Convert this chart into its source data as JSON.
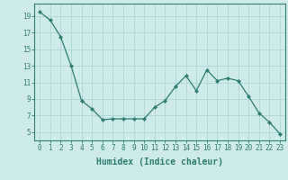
{
  "x": [
    0,
    1,
    2,
    3,
    4,
    5,
    6,
    7,
    8,
    9,
    10,
    11,
    12,
    13,
    14,
    15,
    16,
    17,
    18,
    19,
    20,
    21,
    22,
    23
  ],
  "y": [
    19.5,
    18.5,
    16.5,
    13.0,
    8.8,
    7.8,
    6.5,
    6.6,
    6.6,
    6.6,
    6.6,
    8.0,
    8.8,
    10.5,
    11.8,
    10.0,
    12.5,
    11.2,
    11.5,
    11.2,
    9.3,
    7.3,
    6.2,
    4.8
  ],
  "line_color": "#2e7d6e",
  "marker": "D",
  "marker_size": 2,
  "background_color": "#ceeaea",
  "grid_color": "#afd4d4",
  "xlabel": "Humidex (Indice chaleur)",
  "xlim": [
    -0.5,
    23.5
  ],
  "ylim": [
    4,
    20.5
  ],
  "yticks": [
    5,
    7,
    9,
    11,
    13,
    15,
    17,
    19
  ],
  "xtick_labels": [
    "0",
    "1",
    "2",
    "3",
    "4",
    "5",
    "6",
    "7",
    "8",
    "9",
    "10",
    "11",
    "12",
    "13",
    "14",
    "15",
    "16",
    "17",
    "18",
    "19",
    "20",
    "21",
    "22",
    "23"
  ],
  "tick_color": "#2e7d6e",
  "axis_color": "#2e7d6e",
  "font_color": "#2e7d6e",
  "xlabel_fontsize": 7,
  "tick_fontsize": 5.5
}
